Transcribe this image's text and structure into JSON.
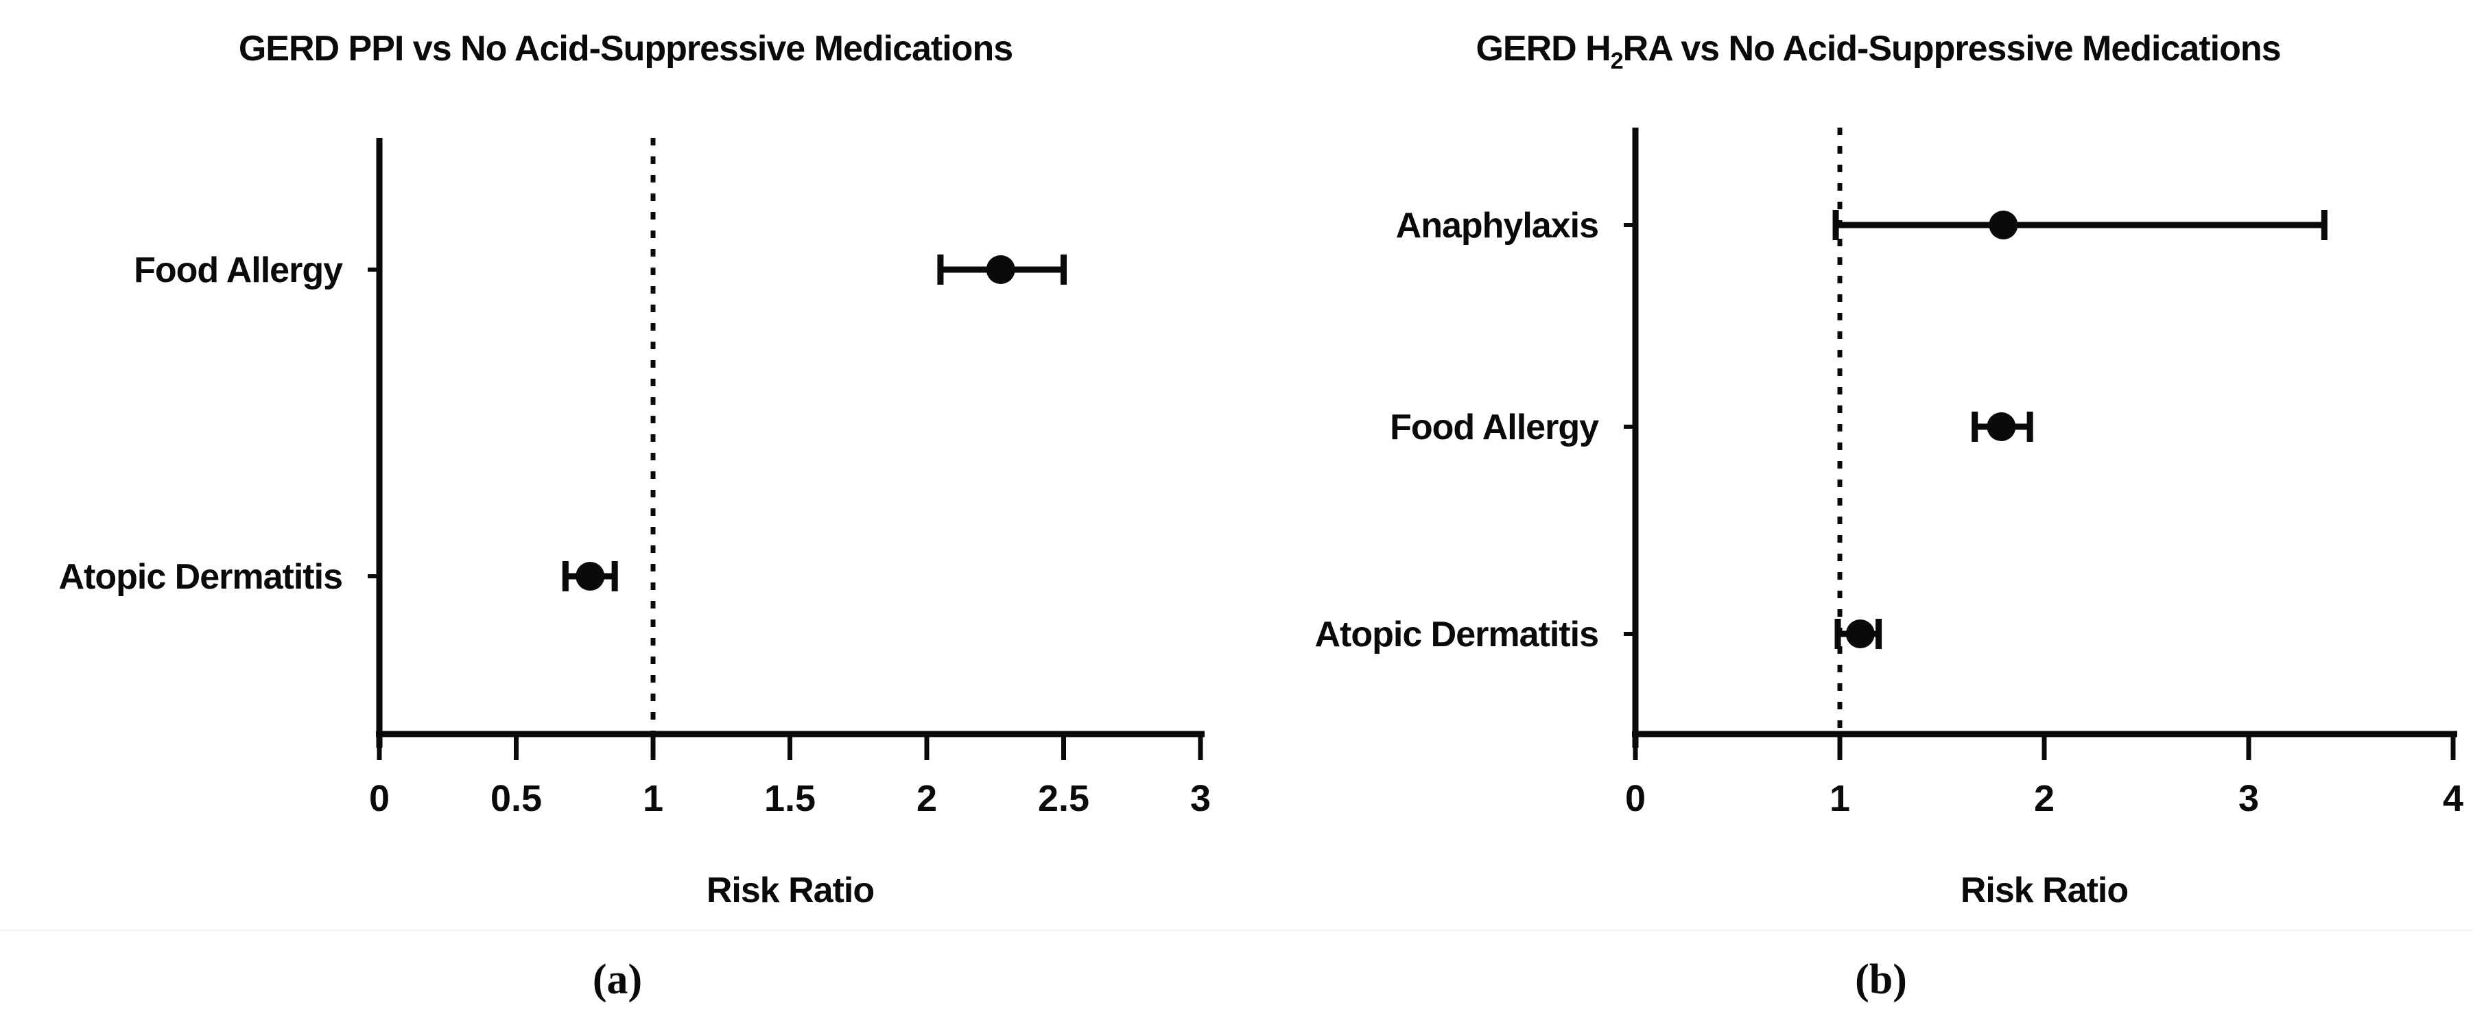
{
  "figure": {
    "background": "#ffffff",
    "ink_color": "#0a0a0a",
    "description": "Two-panel forest plot of risk ratios with 95% confidence intervals"
  },
  "chart_data": [
    {
      "id": "a",
      "type": "scatter",
      "variant": "forest-plot-errorbars",
      "title": "GERD PPI vs No Acid-Suppressive Medications",
      "title_parts": [
        {
          "text": "GERD PPI vs No Acid-Suppressive Medications"
        }
      ],
      "xlabel": "Risk Ratio",
      "caption": "(a)",
      "xlim": [
        0,
        3
      ],
      "xticks": [
        0,
        0.5,
        1,
        1.5,
        2,
        2.5,
        3
      ],
      "xtick_labels": [
        "0",
        "0.5",
        "1",
        "1.5",
        "2",
        "2.5",
        "3"
      ],
      "reference_line_x": 1,
      "grid": false,
      "legend": "none",
      "categories": [
        "Food Allergy",
        "Atopic Dermatitis"
      ],
      "series": [
        {
          "category": "Food Allergy",
          "risk_ratio": 2.27,
          "ci_low": 2.05,
          "ci_high": 2.5
        },
        {
          "category": "Atopic Dermatitis",
          "risk_ratio": 0.77,
          "ci_low": 0.68,
          "ci_high": 0.86
        }
      ]
    },
    {
      "id": "b",
      "type": "scatter",
      "variant": "forest-plot-errorbars",
      "title": "GERD H2RA vs No Acid-Suppressive Medications",
      "title_parts": [
        {
          "text": "GERD H"
        },
        {
          "text": "2",
          "subscript": true
        },
        {
          "text": "RA vs No Acid-Suppressive Medications"
        }
      ],
      "xlabel": "Risk Ratio",
      "caption": "(b)",
      "xlim": [
        0,
        4
      ],
      "xticks": [
        0,
        1,
        2,
        3,
        4
      ],
      "xtick_labels": [
        "0",
        "1",
        "2",
        "3",
        "4"
      ],
      "reference_line_x": 1,
      "grid": false,
      "legend": "none",
      "categories": [
        "Anaphylaxis",
        "Food Allergy",
        "Atopic Dermatitis"
      ],
      "series": [
        {
          "category": "Anaphylaxis",
          "risk_ratio": 1.8,
          "ci_low": 0.98,
          "ci_high": 3.37
        },
        {
          "category": "Food Allergy",
          "risk_ratio": 1.79,
          "ci_low": 1.66,
          "ci_high": 1.93
        },
        {
          "category": "Atopic Dermatitis",
          "risk_ratio": 1.1,
          "ci_low": 0.99,
          "ci_high": 1.19
        }
      ]
    }
  ]
}
